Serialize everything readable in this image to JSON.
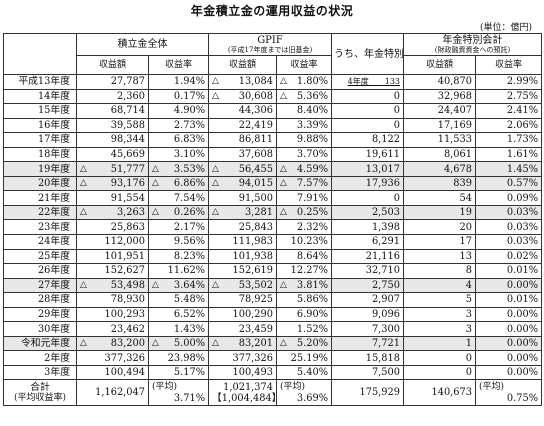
{
  "title": "年金積立金の運用収益の状況",
  "unit": "(単位：億円)",
  "headers": {
    "total": "積立金全体",
    "gpif": "GPIF",
    "gpif_note": "(平成17年度までは旧基金)",
    "contrib": "うち、年金特別会計へ納付",
    "special": "年金特別会計",
    "special_note": "(財政融資資金への預託)",
    "income": "収益額",
    "rate": "収益率"
  },
  "rows": [
    {
      "year": "平成13年度",
      "t_amt": "27,787",
      "t_neg": false,
      "t_rate": "1.94%",
      "t_rneg": false,
      "g_amt": "13,084",
      "g_neg": true,
      "g_rate": "1.80%",
      "g_rneg": true,
      "c": "4年度　　133",
      "c_ul": true,
      "s_amt": "40,870",
      "s_rate": "2.99%",
      "shade": false
    },
    {
      "year": "14年度",
      "t_amt": "2,360",
      "t_neg": false,
      "t_rate": "0.17%",
      "t_rneg": false,
      "g_amt": "30,608",
      "g_neg": true,
      "g_rate": "5.36%",
      "g_rneg": true,
      "c": "0",
      "c_ul": false,
      "s_amt": "32,968",
      "s_rate": "2.75%",
      "shade": false
    },
    {
      "year": "15年度",
      "t_amt": "68,714",
      "t_neg": false,
      "t_rate": "4.90%",
      "t_rneg": false,
      "g_amt": "44,306",
      "g_neg": false,
      "g_rate": "8.40%",
      "g_rneg": false,
      "c": "0",
      "c_ul": false,
      "s_amt": "24,407",
      "s_rate": "2.41%",
      "shade": false
    },
    {
      "year": "16年度",
      "t_amt": "39,588",
      "t_neg": false,
      "t_rate": "2.73%",
      "t_rneg": false,
      "g_amt": "22,419",
      "g_neg": false,
      "g_rate": "3.39%",
      "g_rneg": false,
      "c": "0",
      "c_ul": false,
      "s_amt": "17,169",
      "s_rate": "2.06%",
      "shade": false
    },
    {
      "year": "17年度",
      "t_amt": "98,344",
      "t_neg": false,
      "t_rate": "6.83%",
      "t_rneg": false,
      "g_amt": "86,811",
      "g_neg": false,
      "g_rate": "9.88%",
      "g_rneg": false,
      "c": "8,122",
      "c_ul": false,
      "s_amt": "11,533",
      "s_rate": "1.73%",
      "shade": false
    },
    {
      "year": "18年度",
      "t_amt": "45,669",
      "t_neg": false,
      "t_rate": "3.10%",
      "t_rneg": false,
      "g_amt": "37,608",
      "g_neg": false,
      "g_rate": "3.70%",
      "g_rneg": false,
      "c": "19,611",
      "c_ul": false,
      "s_amt": "8,061",
      "s_rate": "1.61%",
      "shade": false
    },
    {
      "year": "19年度",
      "t_amt": "51,777",
      "t_neg": true,
      "t_rate": "3.53%",
      "t_rneg": true,
      "g_amt": "56,455",
      "g_neg": true,
      "g_rate": "4.59%",
      "g_rneg": true,
      "c": "13,017",
      "c_ul": false,
      "s_amt": "4,678",
      "s_rate": "1.45%",
      "shade": true
    },
    {
      "year": "20年度",
      "t_amt": "93,176",
      "t_neg": true,
      "t_rate": "6.86%",
      "t_rneg": true,
      "g_amt": "94,015",
      "g_neg": true,
      "g_rate": "7.57%",
      "g_rneg": true,
      "c": "17,936",
      "c_ul": false,
      "s_amt": "839",
      "s_rate": "0.57%",
      "shade": true
    },
    {
      "year": "21年度",
      "t_amt": "91,554",
      "t_neg": false,
      "t_rate": "7.54%",
      "t_rneg": false,
      "g_amt": "91,500",
      "g_neg": false,
      "g_rate": "7.91%",
      "g_rneg": false,
      "c": "0",
      "c_ul": false,
      "s_amt": "54",
      "s_rate": "0.09%",
      "shade": false
    },
    {
      "year": "22年度",
      "t_amt": "3,263",
      "t_neg": true,
      "t_rate": "0.26%",
      "t_rneg": true,
      "g_amt": "3,281",
      "g_neg": true,
      "g_rate": "0.25%",
      "g_rneg": true,
      "c": "2,503",
      "c_ul": false,
      "s_amt": "19",
      "s_rate": "0.03%",
      "shade": true
    },
    {
      "year": "23年度",
      "t_amt": "25,863",
      "t_neg": false,
      "t_rate": "2.17%",
      "t_rneg": false,
      "g_amt": "25,843",
      "g_neg": false,
      "g_rate": "2.32%",
      "g_rneg": false,
      "c": "1,398",
      "c_ul": false,
      "s_amt": "20",
      "s_rate": "0.03%",
      "shade": false
    },
    {
      "year": "24年度",
      "t_amt": "112,000",
      "t_neg": false,
      "t_rate": "9.56%",
      "t_rneg": false,
      "g_amt": "111,983",
      "g_neg": false,
      "g_rate": "10.23%",
      "g_rneg": false,
      "c": "6,291",
      "c_ul": false,
      "s_amt": "17",
      "s_rate": "0.03%",
      "shade": false
    },
    {
      "year": "25年度",
      "t_amt": "101,951",
      "t_neg": false,
      "t_rate": "8.23%",
      "t_rneg": false,
      "g_amt": "101,938",
      "g_neg": false,
      "g_rate": "8.64%",
      "g_rneg": false,
      "c": "21,116",
      "c_ul": false,
      "s_amt": "13",
      "s_rate": "0.02%",
      "shade": false
    },
    {
      "year": "26年度",
      "t_amt": "152,627",
      "t_neg": false,
      "t_rate": "11.62%",
      "t_rneg": false,
      "g_amt": "152,619",
      "g_neg": false,
      "g_rate": "12.27%",
      "g_rneg": false,
      "c": "32,710",
      "c_ul": false,
      "s_amt": "8",
      "s_rate": "0.01%",
      "shade": false
    },
    {
      "year": "27年度",
      "t_amt": "53,498",
      "t_neg": true,
      "t_rate": "3.64%",
      "t_rneg": true,
      "g_amt": "53,502",
      "g_neg": true,
      "g_rate": "3.81%",
      "g_rneg": true,
      "c": "2,750",
      "c_ul": false,
      "s_amt": "4",
      "s_rate": "0.00%",
      "shade": true
    },
    {
      "year": "28年度",
      "t_amt": "78,930",
      "t_neg": false,
      "t_rate": "5.48%",
      "t_rneg": false,
      "g_amt": "78,925",
      "g_neg": false,
      "g_rate": "5.86%",
      "g_rneg": false,
      "c": "2,907",
      "c_ul": false,
      "s_amt": "5",
      "s_rate": "0.01%",
      "shade": false
    },
    {
      "year": "29年度",
      "t_amt": "100,293",
      "t_neg": false,
      "t_rate": "6.52%",
      "t_rneg": false,
      "g_amt": "100,290",
      "g_neg": false,
      "g_rate": "6.90%",
      "g_rneg": false,
      "c": "9,096",
      "c_ul": false,
      "s_amt": "3",
      "s_rate": "0.00%",
      "shade": false
    },
    {
      "year": "30年度",
      "t_amt": "23,462",
      "t_neg": false,
      "t_rate": "1.43%",
      "t_rneg": false,
      "g_amt": "23,459",
      "g_neg": false,
      "g_rate": "1.52%",
      "g_rneg": false,
      "c": "7,300",
      "c_ul": false,
      "s_amt": "3",
      "s_rate": "0.00%",
      "shade": false
    },
    {
      "year": "令和元年度",
      "t_amt": "83,200",
      "t_neg": true,
      "t_rate": "5.00%",
      "t_rneg": true,
      "g_amt": "83,201",
      "g_neg": true,
      "g_rate": "5.20%",
      "g_rneg": true,
      "c": "7,721",
      "c_ul": false,
      "s_amt": "1",
      "s_rate": "0.00%",
      "shade": true
    },
    {
      "year": "2年度",
      "t_amt": "377,326",
      "t_neg": false,
      "t_rate": "23.98%",
      "t_rneg": false,
      "g_amt": "377,326",
      "g_neg": false,
      "g_rate": "25.19%",
      "g_rneg": false,
      "c": "15,818",
      "c_ul": false,
      "s_amt": "0",
      "s_rate": "0.00%",
      "shade": false
    },
    {
      "year": "3年度",
      "t_amt": "100,494",
      "t_neg": false,
      "t_rate": "5.17%",
      "t_rneg": false,
      "g_amt": "100,493",
      "g_neg": false,
      "g_rate": "5.40%",
      "g_rneg": false,
      "c": "7,500",
      "c_ul": false,
      "s_amt": "0",
      "s_rate": "0.00%",
      "shade": false
    }
  ],
  "total": {
    "label1": "合計",
    "label2": "(平均収益率)",
    "t_amt": "1,162,047",
    "avg_label": "(平均)",
    "t_rate": "3.71%",
    "g_amt1": "1,021,374",
    "g_amt2": "【1,004,484】",
    "g_rate": "3.69%",
    "c": "175,929",
    "s_amt": "140,673",
    "s_rate": "0.75%"
  },
  "triangle": "△"
}
